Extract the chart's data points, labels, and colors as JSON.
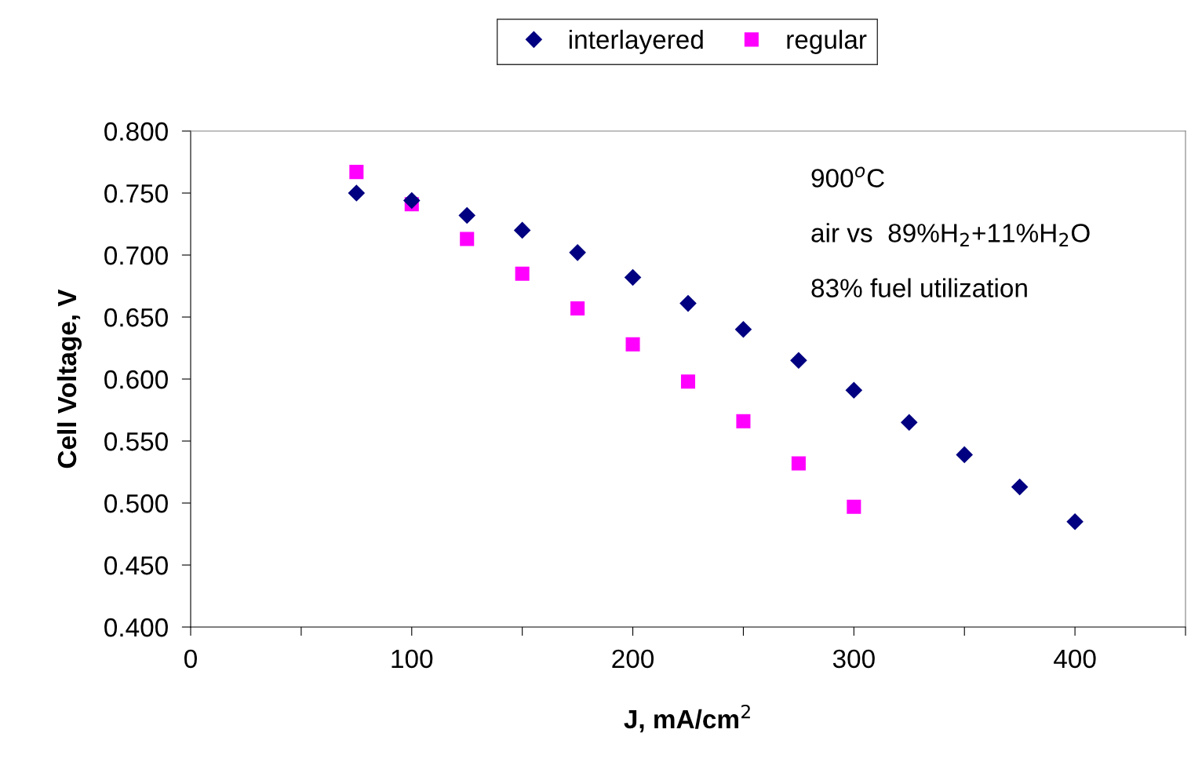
{
  "chart_data": {
    "type": "scatter",
    "xlabel": "J, mA/cm$^{2}$",
    "ylabel": "Cell Voltage, V",
    "annotations": [
      "900$^{o}$C",
      "air vs  89%H$_{2}$+11%H$_{2}$O",
      "83% fuel utilization"
    ],
    "legend": "top",
    "grid": false,
    "xlim": [
      0,
      450
    ],
    "xticks": [
      0,
      {
        "value": 50,
        "label": null
      },
      100,
      {
        "value": 150,
        "label": null
      },
      200,
      {
        "value": 250,
        "label": null
      },
      300,
      {
        "value": 350,
        "label": null
      },
      400,
      {
        "value": 450,
        "label": null
      }
    ],
    "ylim": [
      0.4,
      0.8
    ],
    "yticks": [
      {
        "value": 0.4,
        "label": "0.400"
      },
      {
        "value": 0.45,
        "label": "0.450"
      },
      {
        "value": 0.5,
        "label": "0.500"
      },
      {
        "value": 0.55,
        "label": "0.550"
      },
      {
        "value": 0.6,
        "label": "0.600"
      },
      {
        "value": 0.65,
        "label": "0.650"
      },
      {
        "value": 0.7,
        "label": "0.700"
      },
      {
        "value": 0.75,
        "label": "0.750"
      },
      {
        "value": 0.8,
        "label": "0.800"
      }
    ],
    "series": [
      {
        "name": "interlayered",
        "color": "#000080",
        "marker": "diamond",
        "x": [
          75,
          100,
          125,
          150,
          175,
          200,
          225,
          250,
          275,
          300,
          325,
          350,
          375,
          400
        ],
        "values": [
          0.75,
          0.744,
          0.732,
          0.72,
          0.702,
          0.682,
          0.661,
          0.64,
          0.615,
          0.591,
          0.565,
          0.539,
          0.513,
          0.485
        ]
      },
      {
        "name": "regular",
        "color": "#ff00ff",
        "marker": "square",
        "x": [
          75,
          100,
          125,
          150,
          175,
          200,
          225,
          250,
          275,
          300
        ],
        "values": [
          0.767,
          0.741,
          0.713,
          0.685,
          0.657,
          0.628,
          0.598,
          0.566,
          0.532,
          0.497
        ]
      }
    ]
  }
}
